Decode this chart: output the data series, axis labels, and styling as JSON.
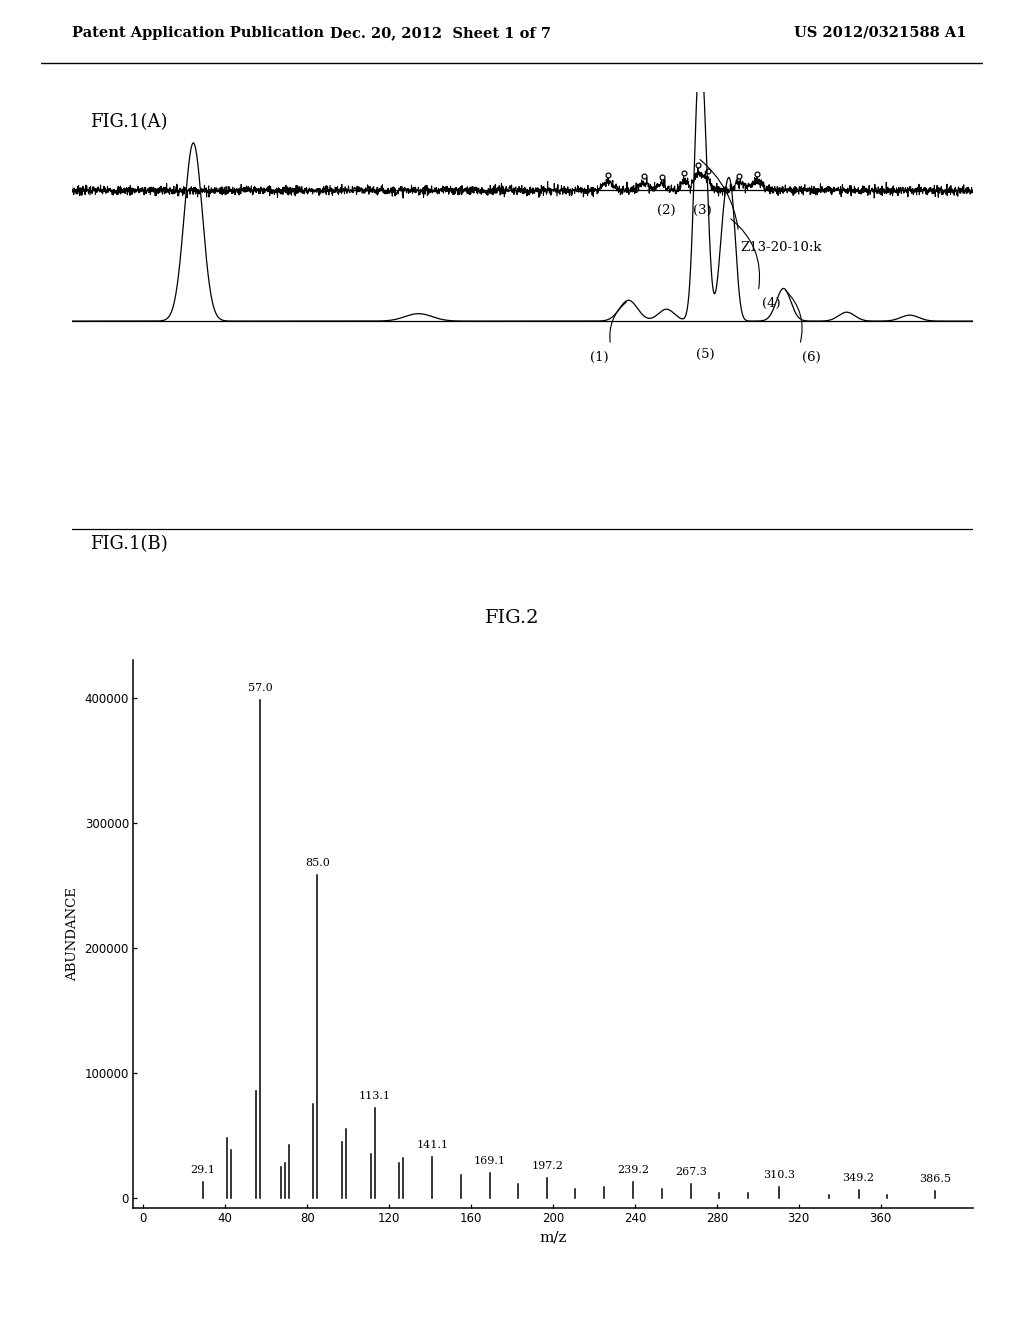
{
  "header_left": "Patent Application Publication",
  "header_center": "Dec. 20, 2012  Sheet 1 of 7",
  "header_right": "US 2012/0321588 A1",
  "fig1a_label": "FIG.1(A)",
  "fig1b_label": "FIG.1(B)",
  "fig2_label": "FIG.2",
  "fig2_xlabel": "m/z",
  "fig2_ylabel": "ABUNDANCE",
  "fig2_yticks": [
    0,
    100000,
    200000,
    300000,
    400000
  ],
  "fig2_xticks": [
    0,
    40,
    80,
    120,
    160,
    200,
    240,
    280,
    320,
    360
  ],
  "fig2_xlim": [
    -5,
    405
  ],
  "fig2_ylim": [
    -8000,
    430000
  ],
  "ms_peaks": {
    "mz": [
      29.1,
      41,
      43,
      55,
      57,
      67,
      69,
      71,
      83,
      85,
      97,
      99,
      111,
      113.1,
      125,
      127,
      141.1,
      155,
      169.1,
      183,
      197.2,
      211,
      225,
      239.2,
      253,
      267.3,
      281,
      295,
      310.3,
      335,
      349.2,
      363,
      386.5
    ],
    "intensity": [
      13000,
      48000,
      38000,
      85000,
      398000,
      25000,
      28000,
      42000,
      75000,
      258000,
      45000,
      55000,
      35000,
      72000,
      28000,
      32000,
      33000,
      18000,
      20000,
      11000,
      16000,
      7000,
      9000,
      13000,
      7000,
      11000,
      4000,
      3500,
      9000,
      2500,
      6500,
      2500,
      5500
    ],
    "labels": [
      "29.1",
      "",
      "",
      "",
      "57.0",
      "",
      "",
      "",
      "",
      "85.0",
      "",
      "",
      "",
      "113.1",
      "",
      "",
      "141.1",
      "",
      "169.1",
      "",
      "197.2",
      "",
      "",
      "239.2",
      "",
      "267.3",
      "",
      "",
      "310.3",
      "",
      "349.2",
      "",
      "386.5"
    ]
  },
  "background_color": "#ffffff",
  "text_color": "#000000"
}
